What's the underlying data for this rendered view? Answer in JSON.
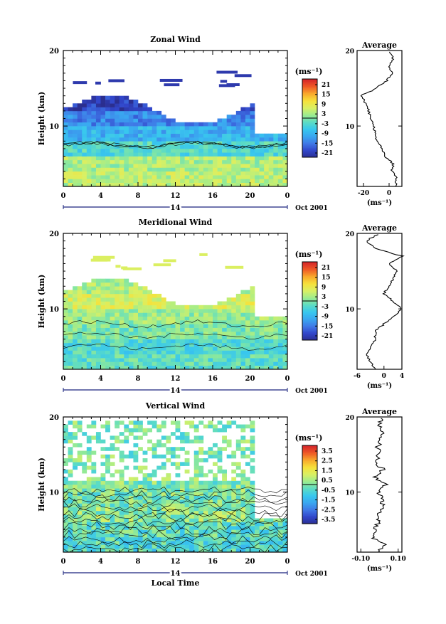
{
  "figure": {
    "xlabel": "Local Time",
    "x_ticks": [
      "0",
      "4",
      "8",
      "12",
      "16",
      "20",
      "0"
    ],
    "date_label": "14",
    "month_label": "Oct 2001",
    "unit_label": "(ms⁻¹)",
    "avg_unit_label": "(ms⁻¹)",
    "ylabel": "Height (km)",
    "y_ticks": [
      "10",
      "20"
    ],
    "avg_title": "Average"
  },
  "panels": [
    {
      "title": "Zonal Wind",
      "colorbar_ticks": [
        "21",
        "15",
        "9",
        "3",
        "-3",
        "-9",
        "-15",
        "-21"
      ],
      "avg_xticks": [
        "-20",
        "0"
      ],
      "avg_xlim": [
        -25,
        10
      ]
    },
    {
      "title": "Meridional Wind",
      "colorbar_ticks": [
        "21",
        "15",
        "9",
        "3",
        "-3",
        "-9",
        "-15",
        "-21"
      ],
      "avg_xticks": [
        "-6",
        "0",
        "4"
      ],
      "avg_xlim": [
        -6,
        4
      ]
    },
    {
      "title": "Vertical Wind",
      "colorbar_ticks": [
        "3.5",
        "2.5",
        "1.5",
        "0.5",
        "-0.5",
        "-1.5",
        "-2.5",
        "-3.5"
      ],
      "avg_xticks": [
        "-0.10",
        "0.10"
      ],
      "avg_xlim": [
        -0.12,
        0.12
      ]
    }
  ],
  "chart_data": [
    {
      "type": "heatmap",
      "title": "Zonal Wind",
      "xlabel": "Local Time",
      "ylabel": "Height (km)",
      "xlim": [
        0,
        24
      ],
      "ylim": [
        2,
        20
      ],
      "colorbar_range": [
        -21,
        21
      ],
      "height_km": [
        2,
        4,
        6,
        8,
        10,
        12,
        14,
        16,
        18
      ],
      "mean_by_height": [
        4,
        3,
        -3,
        -8,
        -12,
        -18,
        -20,
        -18,
        null
      ],
      "avg_profile": {
        "height_km": [
          2,
          3,
          4,
          5,
          6,
          7,
          8,
          9,
          10,
          11,
          12,
          13,
          14,
          15,
          16,
          17,
          18,
          19,
          20
        ],
        "value": [
          5,
          6,
          2,
          3,
          -3,
          -6,
          -9,
          -11,
          -12,
          -14,
          -16,
          -18,
          -22,
          -10,
          -2,
          2,
          0,
          3,
          0
        ]
      }
    },
    {
      "type": "heatmap",
      "title": "Meridional Wind",
      "xlabel": "Local Time",
      "ylabel": "Height (km)",
      "xlim": [
        0,
        24
      ],
      "ylim": [
        2,
        20
      ],
      "colorbar_range": [
        -21,
        21
      ],
      "height_km": [
        2,
        4,
        6,
        8,
        10,
        12,
        14,
        16,
        18
      ],
      "mean_by_height": [
        -2,
        -3,
        0,
        2,
        6,
        3,
        1,
        2,
        null
      ],
      "avg_profile": {
        "height_km": [
          2,
          3,
          4,
          5,
          6,
          7,
          8,
          9,
          10,
          11,
          12,
          13,
          14,
          15,
          16,
          17,
          18,
          19,
          20
        ],
        "value": [
          -2,
          -3,
          -4,
          -3,
          -2,
          -2,
          0,
          2,
          4,
          2,
          0,
          1,
          2,
          3,
          1,
          4,
          -2,
          -4,
          -1
        ]
      }
    },
    {
      "type": "heatmap",
      "title": "Vertical Wind",
      "xlabel": "Local Time",
      "ylabel": "Height (km)",
      "xlim": [
        0,
        24
      ],
      "ylim": [
        2,
        20
      ],
      "colorbar_range": [
        -3.5,
        3.5
      ],
      "height_km": [
        2,
        4,
        6,
        8,
        10,
        12,
        14,
        16,
        18
      ],
      "mean_by_height": [
        -0.5,
        -0.3,
        0.2,
        0.0,
        0.1,
        0.0,
        0.0,
        0.0,
        0.0
      ],
      "avg_profile": {
        "height_km": [
          2,
          3,
          4,
          5,
          6,
          7,
          8,
          9,
          10,
          11,
          12,
          13,
          14,
          15,
          16,
          17,
          18,
          19,
          20
        ],
        "value": [
          -0.02,
          0.03,
          -0.04,
          -0.02,
          -0.01,
          0.0,
          0.01,
          0.02,
          -0.01,
          0.03,
          -0.03,
          0.02,
          -0.02,
          0.0,
          -0.01,
          0.01,
          0.02,
          0.0,
          0.01
        ]
      }
    }
  ]
}
